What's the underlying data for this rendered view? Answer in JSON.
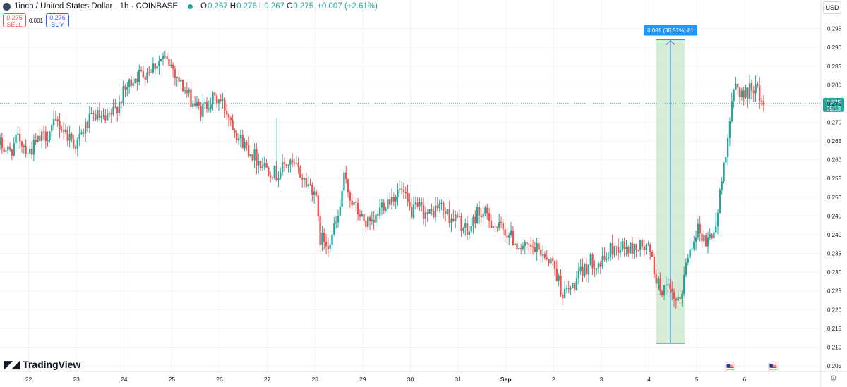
{
  "header": {
    "title": "1inch / United States Dollar · 1h · COINBASE",
    "ohlc": [
      {
        "k": "O",
        "v": "0.267"
      },
      {
        "k": "H",
        "v": "0.276"
      },
      {
        "k": "L",
        "v": "0.267"
      },
      {
        "k": "C",
        "v": "0.275"
      }
    ],
    "change": "+0.007 (+2.61%)"
  },
  "trade": {
    "sell_price": "0.275",
    "sell_label": "SELL",
    "spread": "0.001",
    "buy_price": "0.276",
    "buy_label": "BUY"
  },
  "currency": "USD",
  "brand": "TradingView",
  "colors": {
    "up": "#26a69a",
    "down": "#ef5350",
    "measure": "#2196f3",
    "measure_fill": "#c8e6c9"
  },
  "chart_data": {
    "type": "candlestick",
    "ylim": [
      0.2035,
      0.2985
    ],
    "y_ticks": [
      "0.295",
      "0.290",
      "0.285",
      "0.280",
      "0.275",
      "0.270",
      "0.265",
      "0.260",
      "0.255",
      "0.250",
      "0.245",
      "0.240",
      "0.235",
      "0.230",
      "0.225",
      "0.220",
      "0.215",
      "0.210",
      "0.205"
    ],
    "x_ticks": [
      "22",
      "23",
      "24",
      "25",
      "26",
      "27",
      "28",
      "29",
      "30",
      "31",
      "Sep",
      "2",
      "3",
      "4",
      "5",
      "6"
    ],
    "x_tick_days": [
      0,
      1,
      2,
      3,
      4,
      5,
      6,
      7,
      8,
      9,
      10,
      11,
      12,
      13,
      14,
      15
    ],
    "x_range_days": [
      -0.6,
      16.6
    ],
    "last_price": "0.275",
    "last_price_value": 0.275,
    "countdown": "05:13",
    "path": [
      [
        -0.6,
        0.264
      ],
      [
        -0.4,
        0.262
      ],
      [
        -0.2,
        0.266
      ],
      [
        0.0,
        0.262
      ],
      [
        0.2,
        0.265
      ],
      [
        0.4,
        0.267
      ],
      [
        0.6,
        0.27
      ],
      [
        0.8,
        0.267
      ],
      [
        1.0,
        0.264
      ],
      [
        1.2,
        0.269
      ],
      [
        1.4,
        0.272
      ],
      [
        1.6,
        0.27
      ],
      [
        1.8,
        0.273
      ],
      [
        2.0,
        0.278
      ],
      [
        2.2,
        0.282
      ],
      [
        2.4,
        0.283
      ],
      [
        2.6,
        0.285
      ],
      [
        2.8,
        0.287
      ],
      [
        3.0,
        0.285
      ],
      [
        3.2,
        0.28
      ],
      [
        3.4,
        0.276
      ],
      [
        3.6,
        0.273
      ],
      [
        3.8,
        0.276
      ],
      [
        4.0,
        0.276
      ],
      [
        4.2,
        0.272
      ],
      [
        4.4,
        0.266
      ],
      [
        4.6,
        0.263
      ],
      [
        4.8,
        0.26
      ],
      [
        5.0,
        0.258
      ],
      [
        5.2,
        0.256
      ],
      [
        5.4,
        0.259
      ],
      [
        5.6,
        0.258
      ],
      [
        5.8,
        0.254
      ],
      [
        6.0,
        0.252
      ],
      [
        6.1,
        0.239
      ],
      [
        6.3,
        0.238
      ],
      [
        6.5,
        0.245
      ],
      [
        6.6,
        0.255
      ],
      [
        6.8,
        0.248
      ],
      [
        7.0,
        0.244
      ],
      [
        7.2,
        0.242
      ],
      [
        7.4,
        0.248
      ],
      [
        7.6,
        0.25
      ],
      [
        7.8,
        0.252
      ],
      [
        8.0,
        0.246
      ],
      [
        8.2,
        0.247
      ],
      [
        8.4,
        0.245
      ],
      [
        8.6,
        0.248
      ],
      [
        8.8,
        0.245
      ],
      [
        9.0,
        0.244
      ],
      [
        9.2,
        0.24
      ],
      [
        9.4,
        0.246
      ],
      [
        9.6,
        0.245
      ],
      [
        9.8,
        0.242
      ],
      [
        10.0,
        0.241
      ],
      [
        10.2,
        0.238
      ],
      [
        10.4,
        0.236
      ],
      [
        10.6,
        0.236
      ],
      [
        10.8,
        0.235
      ],
      [
        11.0,
        0.232
      ],
      [
        11.2,
        0.224
      ],
      [
        11.4,
        0.226
      ],
      [
        11.6,
        0.23
      ],
      [
        11.8,
        0.233
      ],
      [
        12.0,
        0.232
      ],
      [
        12.2,
        0.236
      ],
      [
        12.4,
        0.237
      ],
      [
        12.6,
        0.236
      ],
      [
        12.8,
        0.237
      ],
      [
        13.0,
        0.236
      ],
      [
        13.2,
        0.226
      ],
      [
        13.4,
        0.225
      ],
      [
        13.6,
        0.221
      ],
      [
        13.7,
        0.226
      ],
      [
        13.8,
        0.234
      ],
      [
        14.0,
        0.242
      ],
      [
        14.2,
        0.238
      ],
      [
        14.4,
        0.242
      ],
      [
        14.6,
        0.262
      ],
      [
        14.8,
        0.28
      ],
      [
        15.0,
        0.277
      ],
      [
        15.2,
        0.28
      ],
      [
        15.4,
        0.275
      ]
    ],
    "spikes": [
      {
        "t": 5.2,
        "high": 0.271
      },
      {
        "t": 6.6,
        "high": 0.256
      },
      {
        "t": 14.4,
        "high": 0.246
      }
    ],
    "measure": {
      "from_value": 0.211,
      "to_value": 0.292,
      "from_day": 13.15,
      "to_day": 13.75,
      "label": "0.081 (38.51%) 81"
    },
    "event_icon_days": [
      14.7,
      15.6
    ]
  }
}
